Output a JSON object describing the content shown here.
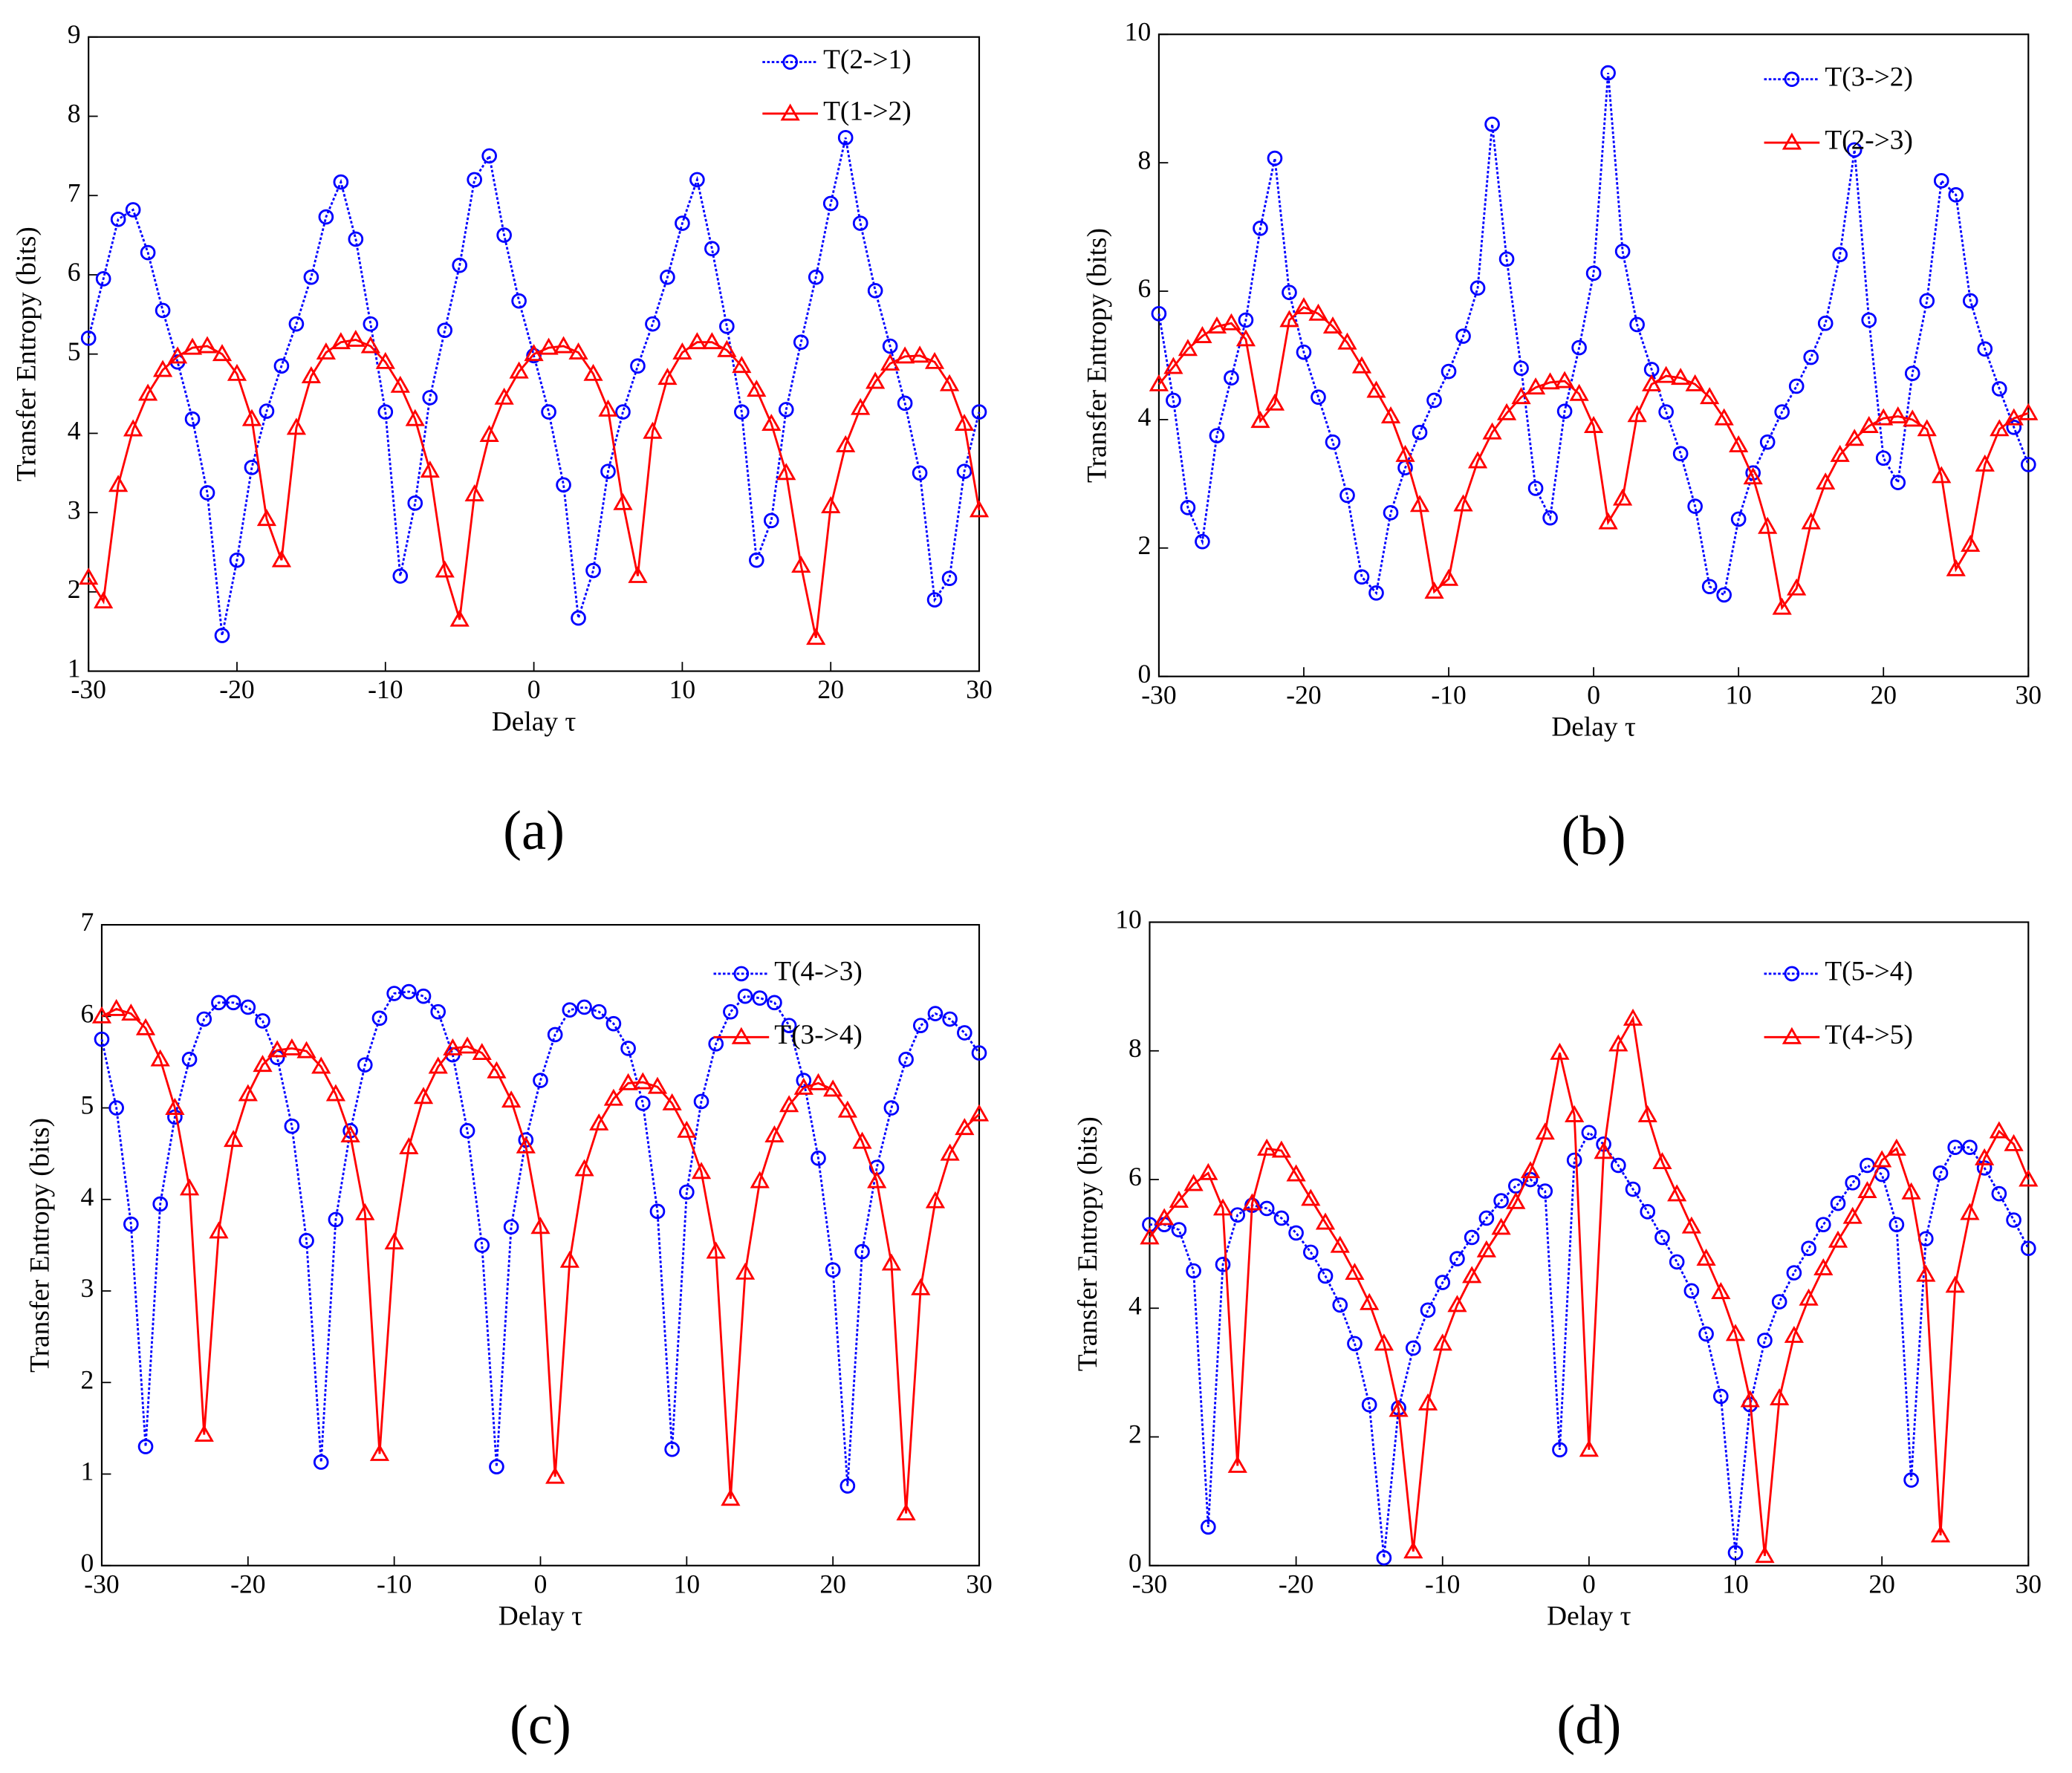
{
  "chart_data": [
    {
      "type": "line",
      "label": "(a)",
      "xlabel": "Delay τ",
      "ylabel": "Transfer Entropy (bits)",
      "x": [
        -30,
        -29,
        -28,
        -27,
        -26,
        -25,
        -24,
        -23,
        -22,
        -21,
        -20,
        -19,
        -18,
        -17,
        -16,
        -15,
        -14,
        -13,
        -12,
        -11,
        -10,
        -9,
        -8,
        -7,
        -6,
        -5,
        -4,
        -3,
        -2,
        -1,
        0,
        1,
        2,
        3,
        4,
        5,
        6,
        7,
        8,
        9,
        10,
        11,
        12,
        13,
        14,
        15,
        16,
        17,
        18,
        19,
        20,
        21,
        22,
        23,
        24,
        25,
        26,
        27,
        28,
        29,
        30
      ],
      "xlim": [
        -30,
        30
      ],
      "xticks": [
        -30,
        -20,
        -10,
        0,
        10,
        20,
        30
      ],
      "ylim": [
        1,
        9
      ],
      "yticks": [
        1,
        2,
        3,
        4,
        5,
        6,
        7,
        8,
        9
      ],
      "legend": "upper right",
      "series": [
        {
          "name": "T(2->1)",
          "color": "#0000ff",
          "line_style": "dotted",
          "marker": "circle",
          "values": [
            5.2,
            5.95,
            6.7,
            6.82,
            6.28,
            5.55,
            4.9,
            4.18,
            3.25,
            1.45,
            2.4,
            3.57,
            4.28,
            4.85,
            5.38,
            5.97,
            6.73,
            7.17,
            6.45,
            5.38,
            4.27,
            2.2,
            3.12,
            4.45,
            5.3,
            6.12,
            7.2,
            7.5,
            6.5,
            5.67,
            4.98,
            4.27,
            3.35,
            1.67,
            2.27,
            3.52,
            4.27,
            4.85,
            5.38,
            5.97,
            6.65,
            7.2,
            6.33,
            5.35,
            4.27,
            2.4,
            2.9,
            4.3,
            5.15,
            5.97,
            6.9,
            7.73,
            6.65,
            5.8,
            5.1,
            4.38,
            3.5,
            1.9,
            2.17,
            3.52,
            4.27
          ]
        },
        {
          "name": "T(1->2)",
          "color": "#ff0000",
          "line_style": "solid",
          "marker": "triangle",
          "values": [
            2.18,
            1.88,
            3.35,
            4.05,
            4.5,
            4.8,
            4.97,
            5.08,
            5.1,
            5.0,
            4.75,
            4.18,
            2.92,
            2.4,
            4.07,
            4.72,
            5.02,
            5.15,
            5.18,
            5.1,
            4.9,
            4.6,
            4.18,
            3.53,
            2.27,
            1.65,
            3.23,
            3.98,
            4.45,
            4.78,
            5.0,
            5.08,
            5.1,
            5.02,
            4.75,
            4.3,
            3.12,
            2.2,
            4.02,
            4.7,
            5.02,
            5.15,
            5.15,
            5.05,
            4.85,
            4.55,
            4.12,
            3.5,
            2.33,
            1.42,
            3.08,
            3.85,
            4.32,
            4.65,
            4.88,
            4.97,
            4.98,
            4.9,
            4.62,
            4.12,
            3.03
          ]
        }
      ]
    },
    {
      "type": "line",
      "label": "(b)",
      "xlabel": "Delay τ",
      "ylabel": "Transfer Entropy (bits)",
      "x": [
        -30,
        -29,
        -28,
        -27,
        -26,
        -25,
        -24,
        -23,
        -22,
        -21,
        -20,
        -19,
        -18,
        -17,
        -16,
        -15,
        -14,
        -13,
        -12,
        -11,
        -10,
        -9,
        -8,
        -7,
        -6,
        -5,
        -4,
        -3,
        -2,
        -1,
        0,
        1,
        2,
        3,
        4,
        5,
        6,
        7,
        8,
        9,
        10,
        11,
        12,
        13,
        14,
        15,
        16,
        17,
        18,
        19,
        20,
        21,
        22,
        23,
        24,
        25,
        26,
        27,
        28,
        29,
        30
      ],
      "xlim": [
        -30,
        30
      ],
      "xticks": [
        -30,
        -20,
        -10,
        0,
        10,
        20,
        30
      ],
      "ylim": [
        0,
        10
      ],
      "yticks": [
        0,
        2,
        4,
        6,
        8,
        10
      ],
      "legend": "upper right",
      "series": [
        {
          "name": "T(3->2)",
          "color": "#0000ff",
          "line_style": "dotted",
          "marker": "circle",
          "values": [
            5.65,
            4.3,
            2.63,
            2.1,
            3.75,
            4.65,
            5.55,
            6.98,
            8.07,
            5.98,
            5.05,
            4.35,
            3.65,
            2.82,
            1.55,
            1.3,
            2.55,
            3.25,
            3.8,
            4.3,
            4.75,
            5.3,
            6.05,
            8.6,
            6.5,
            4.8,
            2.93,
            2.47,
            4.13,
            5.12,
            6.28,
            9.4,
            6.62,
            5.48,
            4.78,
            4.12,
            3.47,
            2.65,
            1.4,
            1.27,
            2.45,
            3.17,
            3.65,
            4.12,
            4.52,
            4.97,
            5.5,
            6.57,
            8.2,
            5.55,
            3.4,
            3.02,
            4.72,
            5.85,
            7.72,
            7.5,
            5.85,
            5.1,
            4.48,
            3.88,
            3.3
          ]
        },
        {
          "name": "T(2->3)",
          "color": "#ff0000",
          "line_style": "solid",
          "marker": "triangle",
          "values": [
            4.55,
            4.82,
            5.1,
            5.3,
            5.45,
            5.5,
            5.25,
            3.98,
            4.25,
            5.55,
            5.75,
            5.65,
            5.45,
            5.2,
            4.83,
            4.45,
            4.05,
            3.45,
            2.67,
            1.32,
            1.52,
            2.68,
            3.35,
            3.8,
            4.1,
            4.35,
            4.5,
            4.58,
            4.6,
            4.4,
            3.9,
            2.4,
            2.77,
            4.07,
            4.55,
            4.68,
            4.65,
            4.55,
            4.35,
            4.02,
            3.6,
            3.1,
            2.33,
            1.07,
            1.37,
            2.4,
            3.02,
            3.45,
            3.7,
            3.9,
            4.02,
            4.05,
            4.0,
            3.85,
            3.12,
            1.67,
            2.05,
            3.3,
            3.85,
            4.02,
            4.1
          ]
        }
      ]
    },
    {
      "type": "line",
      "label": "(c)",
      "xlabel": "Delay τ",
      "ylabel": "Transfer Entropy (bits)",
      "x": [
        -30,
        -29,
        -28,
        -27,
        -26,
        -25,
        -24,
        -23,
        -22,
        -21,
        -20,
        -19,
        -18,
        -17,
        -16,
        -15,
        -14,
        -13,
        -12,
        -11,
        -10,
        -9,
        -8,
        -7,
        -6,
        -5,
        -4,
        -3,
        -2,
        -1,
        0,
        1,
        2,
        3,
        4,
        5,
        6,
        7,
        8,
        9,
        10,
        11,
        12,
        13,
        14,
        15,
        16,
        17,
        18,
        19,
        20,
        21,
        22,
        23,
        24,
        25,
        26,
        27,
        28,
        29,
        30
      ],
      "xlim": [
        -30,
        30
      ],
      "xticks": [
        -30,
        -20,
        -10,
        0,
        10,
        20,
        30
      ],
      "ylim": [
        0,
        7
      ],
      "yticks": [
        0,
        1,
        2,
        3,
        4,
        5,
        6,
        7
      ],
      "legend": "upper right",
      "series": [
        {
          "name": "T(4->3)",
          "color": "#0000ff",
          "line_style": "dotted",
          "marker": "circle",
          "values": [
            5.75,
            5.0,
            3.73,
            1.3,
            3.95,
            4.9,
            5.53,
            5.97,
            6.15,
            6.15,
            6.1,
            5.95,
            5.55,
            4.8,
            3.55,
            1.13,
            3.78,
            4.75,
            5.47,
            5.98,
            6.25,
            6.27,
            6.22,
            6.05,
            5.58,
            4.75,
            3.5,
            1.08,
            3.7,
            4.65,
            5.3,
            5.8,
            6.07,
            6.1,
            6.05,
            5.92,
            5.65,
            5.05,
            3.87,
            1.27,
            4.08,
            5.07,
            5.7,
            6.05,
            6.22,
            6.2,
            6.15,
            5.9,
            5.3,
            4.45,
            3.23,
            0.87,
            3.43,
            4.35,
            5.0,
            5.53,
            5.9,
            6.03,
            5.97,
            5.82,
            5.6
          ]
        },
        {
          "name": "T(3->4)",
          "color": "#ff0000",
          "line_style": "solid",
          "marker": "triangle",
          "values": [
            6.0,
            6.08,
            6.03,
            5.87,
            5.53,
            5.0,
            4.12,
            1.43,
            3.65,
            4.65,
            5.15,
            5.47,
            5.63,
            5.65,
            5.62,
            5.45,
            5.15,
            4.7,
            3.85,
            1.22,
            3.53,
            4.57,
            5.12,
            5.45,
            5.65,
            5.67,
            5.6,
            5.4,
            5.08,
            4.58,
            3.7,
            0.97,
            3.33,
            4.33,
            4.83,
            5.1,
            5.27,
            5.28,
            5.23,
            5.05,
            4.75,
            4.3,
            3.43,
            0.73,
            3.2,
            4.2,
            4.7,
            5.03,
            5.22,
            5.27,
            5.2,
            4.97,
            4.63,
            4.2,
            3.3,
            0.57,
            3.03,
            3.98,
            4.5,
            4.78,
            4.93
          ]
        }
      ]
    },
    {
      "type": "line",
      "label": "(d)",
      "xlabel": "Delay τ",
      "ylabel": "Transfer Entropy (bits)",
      "x": [
        -30,
        -29,
        -28,
        -27,
        -26,
        -25,
        -24,
        -23,
        -22,
        -21,
        -20,
        -19,
        -18,
        -17,
        -16,
        -15,
        -14,
        -13,
        -12,
        -11,
        -10,
        -9,
        -8,
        -7,
        -6,
        -5,
        -4,
        -3,
        -2,
        -1,
        0,
        1,
        2,
        3,
        4,
        5,
        6,
        7,
        8,
        9,
        10,
        11,
        12,
        13,
        14,
        15,
        16,
        17,
        18,
        19,
        20,
        21,
        22,
        23,
        24,
        25,
        26,
        27,
        28,
        29,
        30
      ],
      "xlim": [
        -30,
        30
      ],
      "xticks": [
        -30,
        -20,
        -10,
        0,
        10,
        20,
        30
      ],
      "ylim": [
        0,
        10
      ],
      "yticks": [
        0,
        2,
        4,
        6,
        8,
        10
      ],
      "legend": "upper right",
      "series": [
        {
          "name": "T(5->4)",
          "color": "#0000ff",
          "line_style": "dotted",
          "marker": "circle",
          "values": [
            5.3,
            5.3,
            5.22,
            4.58,
            0.6,
            4.68,
            5.45,
            5.6,
            5.55,
            5.4,
            5.17,
            4.87,
            4.5,
            4.05,
            3.45,
            2.5,
            0.12,
            2.45,
            3.38,
            3.97,
            4.4,
            4.77,
            5.1,
            5.4,
            5.67,
            5.9,
            6.0,
            5.82,
            1.8,
            6.3,
            6.73,
            6.55,
            6.22,
            5.85,
            5.5,
            5.1,
            4.72,
            4.27,
            3.6,
            2.63,
            0.2,
            2.5,
            3.5,
            4.1,
            4.55,
            4.93,
            5.3,
            5.63,
            5.95,
            6.22,
            6.08,
            5.3,
            1.33,
            5.08,
            6.1,
            6.5,
            6.5,
            6.18,
            5.78,
            5.37,
            4.93
          ]
        },
        {
          "name": "T(4->5)",
          "color": "#ff0000",
          "line_style": "solid",
          "marker": "triangle",
          "values": [
            5.1,
            5.4,
            5.67,
            5.93,
            6.1,
            5.55,
            1.55,
            5.63,
            6.48,
            6.45,
            6.08,
            5.7,
            5.33,
            4.97,
            4.55,
            4.08,
            3.45,
            2.42,
            0.22,
            2.52,
            3.45,
            4.05,
            4.5,
            4.9,
            5.25,
            5.65,
            6.13,
            6.73,
            7.97,
            7.0,
            1.8,
            6.43,
            8.1,
            8.5,
            7.0,
            6.27,
            5.77,
            5.27,
            4.77,
            4.25,
            3.6,
            2.57,
            0.15,
            2.6,
            3.57,
            4.15,
            4.62,
            5.05,
            5.42,
            5.82,
            6.3,
            6.48,
            5.8,
            4.52,
            0.47,
            4.35,
            5.48,
            6.33,
            6.75,
            6.55,
            6.0
          ]
        }
      ]
    }
  ]
}
